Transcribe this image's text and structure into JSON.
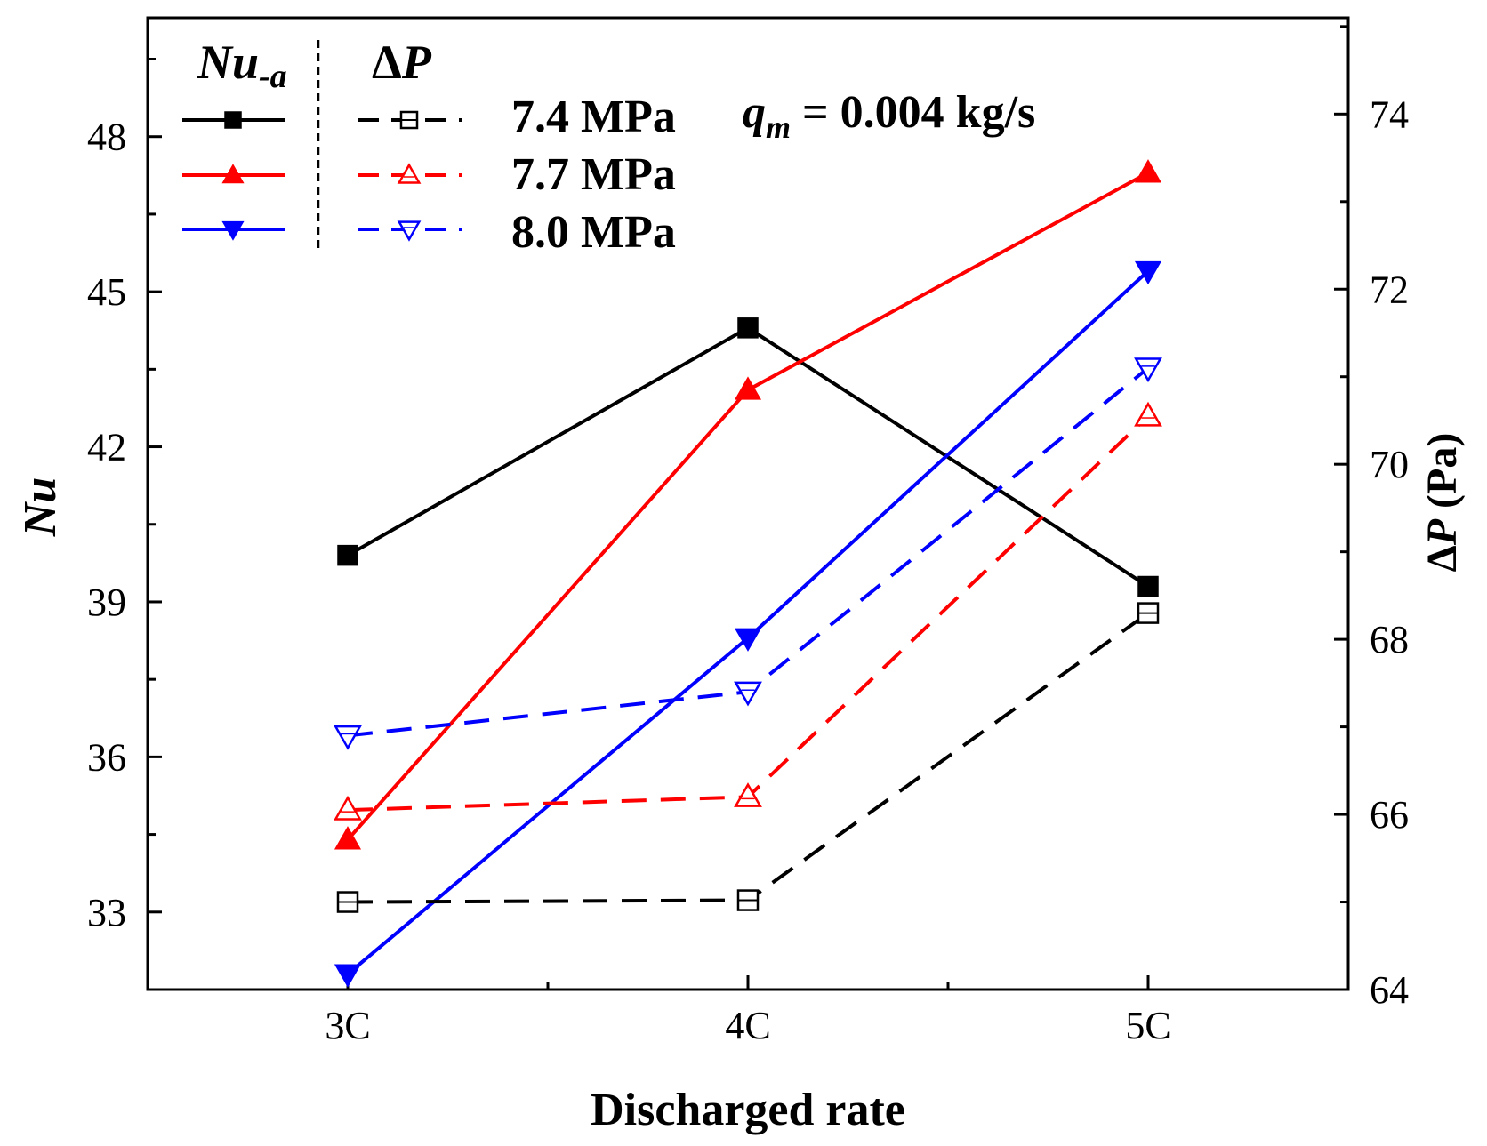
{
  "chart_data": {
    "type": "line",
    "xlabel": "Discharged rate",
    "ylabel_left_main": "Nu",
    "ylabel_right_prefix": "Δ",
    "ylabel_right_var": "P",
    "ylabel_right_unit": " (Pa)",
    "categories": [
      "3C",
      "4C",
      "5C"
    ],
    "y_left": {
      "min": 31.5,
      "max": 50.3,
      "ticks": [
        "33",
        "36",
        "39",
        "42",
        "45",
        "48"
      ]
    },
    "y_right": {
      "min": 64,
      "max": 75.1,
      "ticks": [
        "64",
        "66",
        "68",
        "70",
        "72",
        "74"
      ]
    },
    "legend": {
      "header_nu_main": "Nu",
      "header_nu_sub": "-a",
      "header_dp_prefix": "Δ",
      "header_dp_var": "P",
      "labels": [
        "7.4 MPa",
        "7.7 MPa",
        "8.0 MPa"
      ]
    },
    "annotation": {
      "var": "q",
      "sub": "m",
      "text": " = 0.004 kg/s"
    },
    "series": [
      {
        "name": "Nu 7.4 MPa",
        "axis": "left",
        "style": "solid",
        "marker": "square",
        "filled": true,
        "color": "#000000",
        "values": [
          39.9,
          44.3,
          39.3
        ]
      },
      {
        "name": "Nu 7.7 MPa",
        "axis": "left",
        "style": "solid",
        "marker": "triangle-up",
        "filled": true,
        "color": "#ff0000",
        "values": [
          34.4,
          43.1,
          47.3
        ]
      },
      {
        "name": "Nu 8.0 MPa",
        "axis": "left",
        "style": "solid",
        "marker": "triangle-down",
        "filled": true,
        "color": "#0000ff",
        "values": [
          31.8,
          38.3,
          45.4
        ]
      },
      {
        "name": "ΔP 7.4 MPa",
        "axis": "right",
        "style": "dashed",
        "marker": "square",
        "filled": false,
        "color": "#000000",
        "values": [
          65.0,
          65.02,
          68.3
        ]
      },
      {
        "name": "ΔP 7.7 MPa",
        "axis": "right",
        "style": "dashed",
        "marker": "triangle-up",
        "filled": false,
        "color": "#ff0000",
        "values": [
          66.05,
          66.2,
          70.55
        ]
      },
      {
        "name": "ΔP 8.0 MPa",
        "axis": "right",
        "style": "dashed",
        "marker": "triangle-down",
        "filled": false,
        "color": "#0000ff",
        "values": [
          66.9,
          67.4,
          71.1
        ]
      }
    ]
  }
}
